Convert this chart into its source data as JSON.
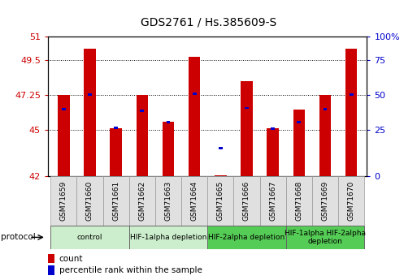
{
  "title": "GDS2761 / Hs.385609-S",
  "samples": [
    "GSM71659",
    "GSM71660",
    "GSM71661",
    "GSM71662",
    "GSM71663",
    "GSM71664",
    "GSM71665",
    "GSM71666",
    "GSM71667",
    "GSM71668",
    "GSM71669",
    "GSM71670"
  ],
  "bar_heights": [
    47.25,
    50.2,
    45.1,
    47.25,
    45.5,
    49.7,
    42.05,
    48.1,
    45.1,
    46.3,
    47.25,
    50.2
  ],
  "blue_y": [
    46.3,
    47.25,
    45.1,
    46.2,
    45.5,
    47.3,
    43.8,
    46.4,
    45.05,
    45.5,
    46.3,
    47.25
  ],
  "ylim_left": [
    42,
    51
  ],
  "yticks_left": [
    42,
    45,
    47.25,
    49.5,
    51
  ],
  "yticks_right_vals": [
    0,
    25,
    50,
    75,
    100
  ],
  "bar_color": "#cc0000",
  "blue_color": "#0000cc",
  "protocol_groups": [
    {
      "label": "control",
      "start": 0,
      "end": 2,
      "color": "#cceecc"
    },
    {
      "label": "HIF-1alpha depletion",
      "start": 3,
      "end": 5,
      "color": "#cceecc"
    },
    {
      "label": "HIF-2alpha depletion",
      "start": 6,
      "end": 8,
      "color": "#55cc55"
    },
    {
      "label": "HIF-1alpha HIF-2alpha\ndepletion",
      "start": 9,
      "end": 11,
      "color": "#55cc55"
    }
  ],
  "bar_width": 0.45,
  "title_fontsize": 10,
  "tick_color_left": "#cc0000",
  "tick_color_right": "#0000cc"
}
